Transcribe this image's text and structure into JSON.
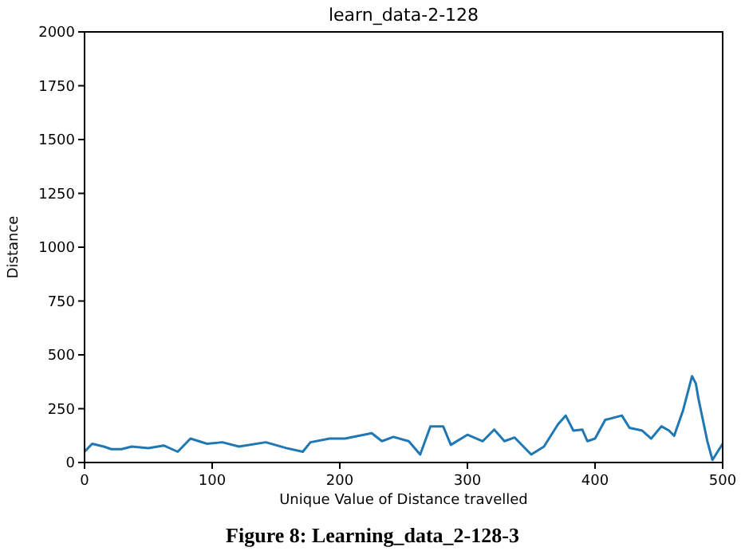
{
  "chart_data": {
    "type": "line",
    "title": "learn_data-2-128",
    "xlabel": "Unique Value of Distance travelled",
    "ylabel": "Distance",
    "annotations": [
      "Figure 8: Learning_data_2-128-3"
    ],
    "x": [
      0,
      6,
      15,
      21,
      29,
      37,
      50,
      62,
      73,
      83,
      96,
      108,
      121,
      142,
      158,
      171,
      177,
      192,
      204,
      225,
      233,
      242,
      254,
      263,
      271,
      281,
      287,
      300,
      312,
      321,
      329,
      337,
      350,
      360,
      371,
      377,
      383,
      390,
      394,
      400,
      408,
      421,
      427,
      437,
      444,
      452,
      458,
      462,
      469,
      476,
      479,
      481,
      488,
      492,
      500
    ],
    "series": [
      {
        "color": "#1f77b4",
        "values": [
          50,
          87,
          74,
          62,
          62,
          74,
          67,
          79,
          50,
          111,
          87,
          94,
          74,
          94,
          67,
          50,
          94,
          111,
          111,
          136,
          99,
          119,
          99,
          37,
          168,
          168,
          82,
          129,
          99,
          153,
          99,
          116,
          37,
          74,
          178,
          218,
          148,
          153,
          99,
          111,
          198,
          218,
          161,
          148,
          111,
          168,
          148,
          124,
          243,
          401,
          366,
          297,
          99,
          12,
          87
        ]
      }
    ],
    "xlim": [
      0,
      500
    ],
    "xticks": [
      0,
      100,
      200,
      300,
      400,
      500
    ],
    "ylim": [
      0,
      2000
    ],
    "yticks": [
      0,
      250,
      500,
      750,
      1000,
      1250,
      1500,
      1750,
      2000
    ],
    "grid": false
  }
}
